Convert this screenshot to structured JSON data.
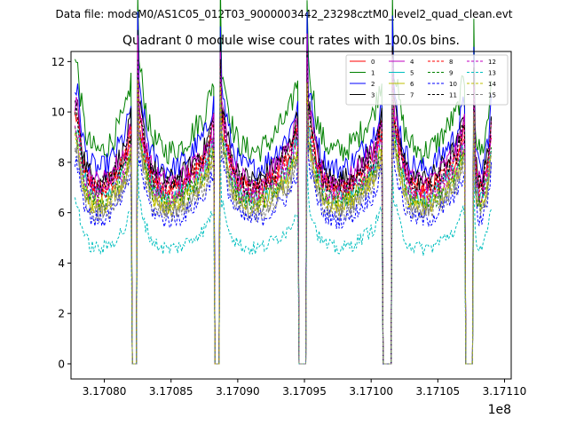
{
  "suptitle": "Data file: modeM0/AS1C05_012T03_9000003442_23298cztM0_level2_quad_clean.evt",
  "chart_data": {
    "type": "line",
    "title": "Quadrant 0 module wise count rates with 100.0s bins.",
    "xlabel": "",
    "ylabel": "",
    "x_offset_label": "1e8",
    "xlim": [
      317077500,
      317110500
    ],
    "ylim": [
      -0.6,
      12.4
    ],
    "x_ticks": [
      317080000,
      317085000,
      317090000,
      317095000,
      317100000,
      317105000,
      317110000
    ],
    "x_tick_labels": [
      "3.17080",
      "3.17085",
      "3.17090",
      "3.17095",
      "3.17100",
      "3.17105",
      "3.17110"
    ],
    "y_ticks": [
      0,
      2,
      4,
      6,
      8,
      10,
      12
    ],
    "y_tick_labels": [
      "0",
      "2",
      "4",
      "6",
      "8",
      "10",
      "12"
    ],
    "grid": false,
    "legend_position": "top-right",
    "legend_columns": 4,
    "bin_seconds": 100,
    "x_start": 317077800,
    "x_end": 317109000,
    "gaps": [
      [
        317082100,
        317082400
      ],
      [
        317088300,
        317088600
      ],
      [
        317094600,
        317095100
      ],
      [
        317100900,
        317101500
      ],
      [
        317107100,
        317107600
      ]
    ],
    "series": [
      {
        "name": "0",
        "color": "#ff0000",
        "dash": "solid",
        "level": 7.9
      },
      {
        "name": "1",
        "color": "#008000",
        "dash": "solid",
        "level": 9.6
      },
      {
        "name": "2",
        "color": "#0000ff",
        "dash": "solid",
        "level": 8.8
      },
      {
        "name": "3",
        "color": "#000000",
        "dash": "solid",
        "level": 8.3
      },
      {
        "name": "4",
        "color": "#c000c0",
        "dash": "solid",
        "level": 8.2
      },
      {
        "name": "5",
        "color": "#00bfbf",
        "dash": "solid",
        "level": 7.5
      },
      {
        "name": "6",
        "color": "#bfbf00",
        "dash": "solid",
        "level": 7.2
      },
      {
        "name": "7",
        "color": "#808080",
        "dash": "solid",
        "level": 7.0
      },
      {
        "name": "8",
        "color": "#ff0000",
        "dash": "dashed",
        "level": 7.8
      },
      {
        "name": "9",
        "color": "#008000",
        "dash": "dashed",
        "level": 7.3
      },
      {
        "name": "10",
        "color": "#0000ff",
        "dash": "dashed",
        "level": 6.5
      },
      {
        "name": "11",
        "color": "#000000",
        "dash": "dashed",
        "level": 8.0
      },
      {
        "name": "12",
        "color": "#c000c0",
        "dash": "dashed",
        "level": 7.6
      },
      {
        "name": "13",
        "color": "#00bfbf",
        "dash": "dashed",
        "level": 5.2
      },
      {
        "name": "14",
        "color": "#bfbf00",
        "dash": "dashed",
        "level": 7.1
      },
      {
        "name": "15",
        "color": "#808080",
        "dash": "dashed",
        "level": 6.8
      }
    ]
  }
}
